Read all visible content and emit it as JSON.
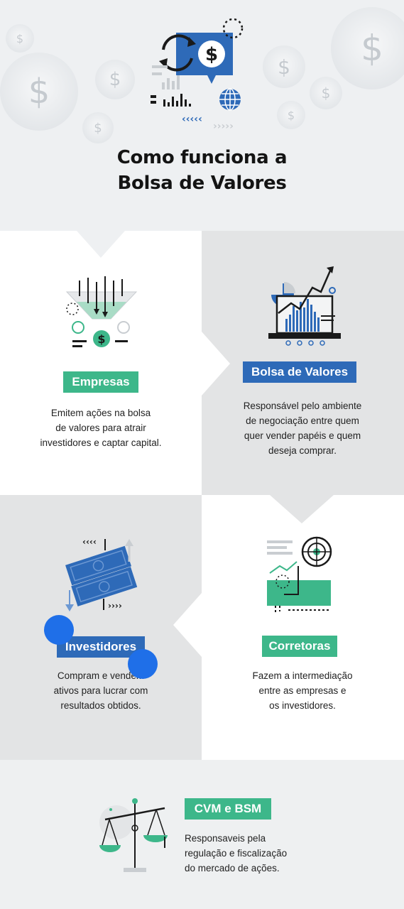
{
  "header": {
    "title_line1": "Como funciona a",
    "title_line2": "Bolsa de Valores",
    "coin_symbol": "$"
  },
  "quadrants": {
    "empresas": {
      "label": "Empresas",
      "description": [
        "Emitem ações na bolsa",
        "de valores para atrair",
        "investidores e captar capital."
      ]
    },
    "bolsa": {
      "label": "Bolsa de Valores",
      "description": [
        "Responsável pelo ambiente",
        "de negociação entre quem",
        "quer vender papéis e quem",
        "deseja comprar."
      ]
    },
    "investidores": {
      "label": "Investidores",
      "description": [
        "Compram e vendem",
        "ativos para lucrar com",
        "resultados obtidos."
      ]
    },
    "corretoras": {
      "label": "Corretoras",
      "description": [
        "Fazem a intermediação",
        "entre as empresas e",
        "os investidores."
      ]
    }
  },
  "footer": {
    "label": "CVM e BSM",
    "description": [
      "Responsaveis pela",
      "regulação e fiscalização",
      "do mercado de ações."
    ]
  },
  "colors": {
    "green": "#3db78a",
    "blue": "#2e6ab8",
    "touch_dot": "#1f6fe8"
  }
}
